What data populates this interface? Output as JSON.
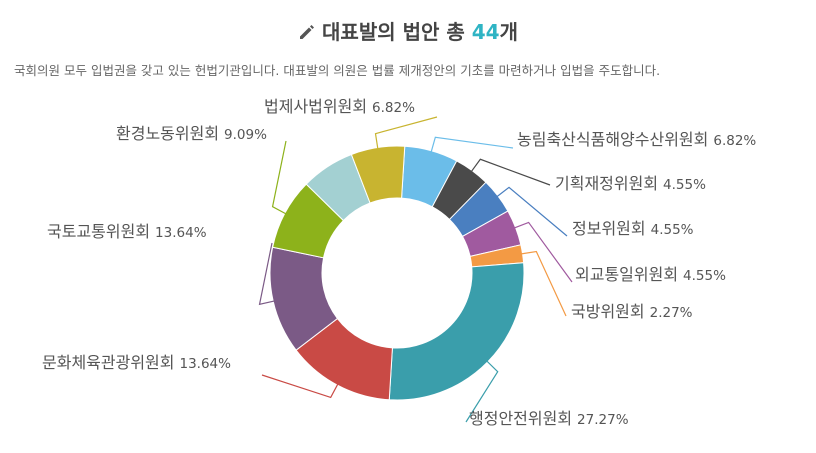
{
  "header": {
    "title_prefix": "대표발의 법안 총 ",
    "title_count": "44",
    "title_suffix": "개",
    "subtitle": "국회의원 모두 입법권을 갖고 있는 헌법기관입니다. 대표발의 의원은 법률 제개정안의 기초를 마련하거나 입법을 주도합니다."
  },
  "chart_data": {
    "type": "pie",
    "variant": "donut",
    "title": "대표발의 법안 총 44개",
    "slices": [
      {
        "label": "농림축산식품해양수산위원회",
        "percent": "6.82%",
        "value": 6.82,
        "color": "#6bbde9"
      },
      {
        "label": "기획재정위원회",
        "percent": "4.55%",
        "value": 4.55,
        "color": "#4a4a4a"
      },
      {
        "label": "정보위원회",
        "percent": "4.55%",
        "value": 4.55,
        "color": "#4a7fc0"
      },
      {
        "label": "외교통일위원회",
        "percent": "4.55%",
        "value": 4.55,
        "color": "#a05a9f"
      },
      {
        "label": "국방위원회",
        "percent": "2.27%",
        "value": 2.27,
        "color": "#f39a44"
      },
      {
        "label": "행정안전위원회",
        "percent": "27.27%",
        "value": 27.27,
        "color": "#3a9eab"
      },
      {
        "label": "문화체육관광위원회",
        "percent": "13.64%",
        "value": 13.64,
        "color": "#c94a45"
      },
      {
        "label": "국토교통위원회",
        "percent": "13.64%",
        "value": 13.64,
        "color": "#7b5a86"
      },
      {
        "label": "환경노동위원회",
        "percent": "9.09%",
        "value": 9.09,
        "color": "#8db21b"
      },
      {
        "label": "",
        "percent": "",
        "value": 6.82,
        "color": "#a3d0d2"
      },
      {
        "label": "법제사법위원회",
        "percent": "6.82%",
        "value": 6.82,
        "color": "#c8b430"
      }
    ]
  }
}
